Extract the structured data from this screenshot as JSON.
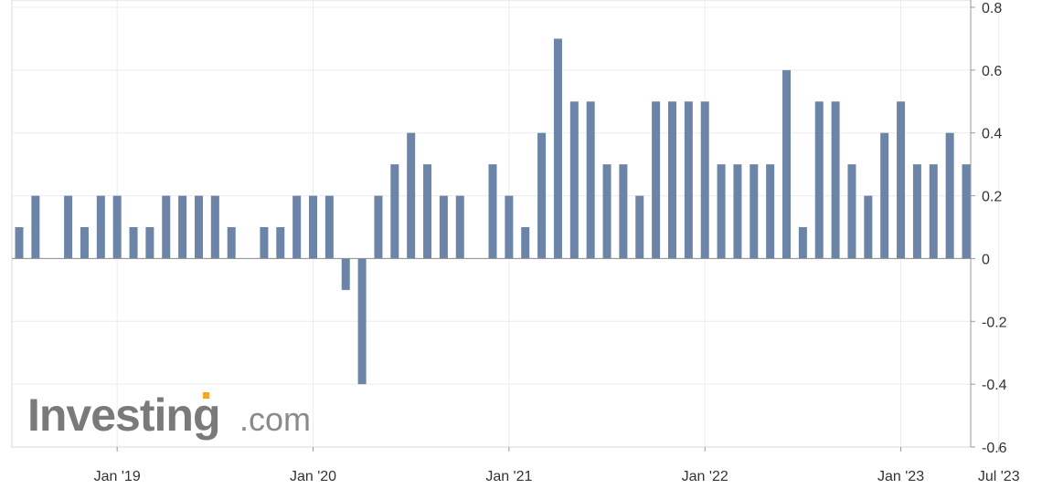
{
  "watermark": {
    "brand": "Investing",
    "suffix": ".com",
    "accent": "#f5a623"
  },
  "chart_data": {
    "type": "bar",
    "start_month": "2018-07",
    "x_tick_labels": [
      {
        "label": "Jan '19",
        "month": "2019-01"
      },
      {
        "label": "Jan '20",
        "month": "2020-01"
      },
      {
        "label": "Jan '21",
        "month": "2021-01"
      },
      {
        "label": "Jan '22",
        "month": "2022-01"
      },
      {
        "label": "Jan '23",
        "month": "2023-01"
      },
      {
        "label": "Jul '23",
        "month": "2023-07"
      }
    ],
    "y_ticks": [
      0.8,
      0.6,
      0.4,
      0.2,
      0,
      -0.2,
      -0.4,
      -0.6
    ],
    "y_tick_labels": [
      "0.8",
      "0.6",
      "0.4",
      "0.2",
      "0",
      "-0.2",
      "-0.4",
      "-0.6"
    ],
    "ylim": [
      -0.6,
      0.8
    ],
    "grid": true,
    "bar_color": "#6b84a8",
    "values": [
      0.1,
      0.2,
      0,
      0.2,
      0.1,
      0.2,
      0.2,
      0.1,
      0.1,
      0.2,
      0.2,
      0.2,
      0.2,
      0.1,
      0,
      0.1,
      0.1,
      0.2,
      0.2,
      0.2,
      -0.1,
      -0.4,
      0.2,
      0.3,
      0.4,
      0.3,
      0.2,
      0.2,
      0,
      0.3,
      0.2,
      0.1,
      0.4,
      0.7,
      0.5,
      0.5,
      0.3,
      0.3,
      0.2,
      0.5,
      0.5,
      0.5,
      0.5,
      0.3,
      0.3,
      0.3,
      0.3,
      0.6,
      0.1,
      0.5,
      0.5,
      0.3,
      0.2,
      0.4,
      0.5,
      0.3,
      0.3,
      0.4,
      0.3
    ]
  }
}
